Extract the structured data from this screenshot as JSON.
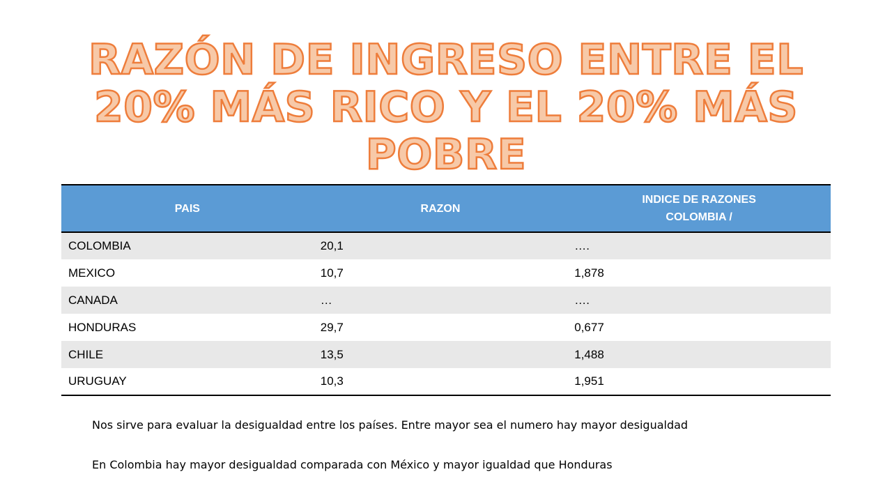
{
  "slide": {
    "title_line_1": "RAZÓN DE INGRESO ENTRE EL",
    "title_line_2": "20% MÁS RICO Y EL 20% MÁS",
    "title_line_3": "POBRE",
    "title_fill_color": "#f7c9a8",
    "title_outline_color": "#ee7d3b"
  },
  "table": {
    "header_color": "#5b9bd5",
    "headers": {
      "pais": "PAIS",
      "razon": "RAZON",
      "indice_line_1": "INDICE DE RAZONES",
      "indice_line_2": "COLOMBIA /"
    },
    "rows": [
      {
        "pais": "COLOMBIA",
        "razon": "20,1",
        "indice": "…."
      },
      {
        "pais": "MEXICO",
        "razon": "10,7",
        "indice": "1,878"
      },
      {
        "pais": "CANADA",
        "razon": "…",
        "indice": "…."
      },
      {
        "pais": "HONDURAS",
        "razon": "29,7",
        "indice": "0,677"
      },
      {
        "pais": "CHILE",
        "razon": "13,5",
        "indice": "1,488"
      },
      {
        "pais": "URUGUAY",
        "razon": "10,3",
        "indice": "1,951"
      }
    ]
  },
  "notes": {
    "note_1": "Nos sirve para evaluar la desigualdad entre los países. Entre mayor sea el numero hay mayor desigualdad",
    "note_2": "En Colombia hay mayor desigualdad comparada con México y mayor igualdad que Honduras"
  }
}
